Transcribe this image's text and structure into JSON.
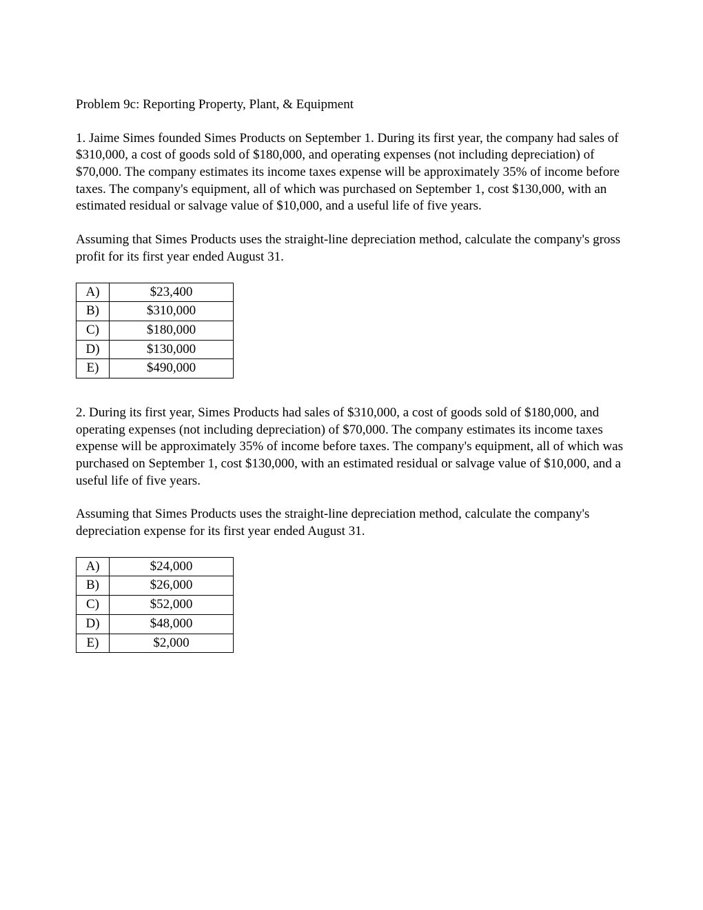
{
  "title": "Problem 9c:  Reporting Property, Plant, & Equipment",
  "q1": {
    "text": "1.  Jaime Simes founded Simes Products on September 1.  During its first year, the company had sales of $310,000, a cost of goods sold of $180,000, and operating expenses (not including depreciation) of $70,000.  The company estimates its income taxes expense will be approximately 35% of income before taxes.  The company's equipment, all of which was purchased on September 1, cost $130,000, with an estimated residual or salvage value of $10,000, and a useful life of five years.",
    "prompt": "Assuming that Simes Products uses the straight-line depreciation method, calculate the company's gross profit for its first year ended August 31.",
    "options": [
      {
        "letter": "A)",
        "value": "$23,400"
      },
      {
        "letter": "B)",
        "value": "$310,000"
      },
      {
        "letter": "C)",
        "value": "$180,000"
      },
      {
        "letter": "D)",
        "value": "$130,000"
      },
      {
        "letter": "E)",
        "value": "$490,000"
      }
    ]
  },
  "q2": {
    "text": "2.  During its first year, Simes Products had sales of $310,000, a cost of goods sold of $180,000, and operating expenses (not including depreciation) of $70,000.  The company estimates its income taxes expense will be approximately 35% of income before taxes.  The company's equipment, all of which was purchased on September 1, cost $130,000, with an estimated residual or salvage value of $10,000, and a useful life of five years.",
    "prompt": "Assuming that Simes Products uses the straight-line depreciation method, calculate the company's depreciation expense for its first year ended August 31.",
    "options": [
      {
        "letter": "A)",
        "value": "$24,000"
      },
      {
        "letter": "B)",
        "value": "$26,000"
      },
      {
        "letter": "C)",
        "value": "$52,000"
      },
      {
        "letter": "D)",
        "value": "$48,000"
      },
      {
        "letter": "E)",
        "value": "$2,000"
      }
    ]
  }
}
